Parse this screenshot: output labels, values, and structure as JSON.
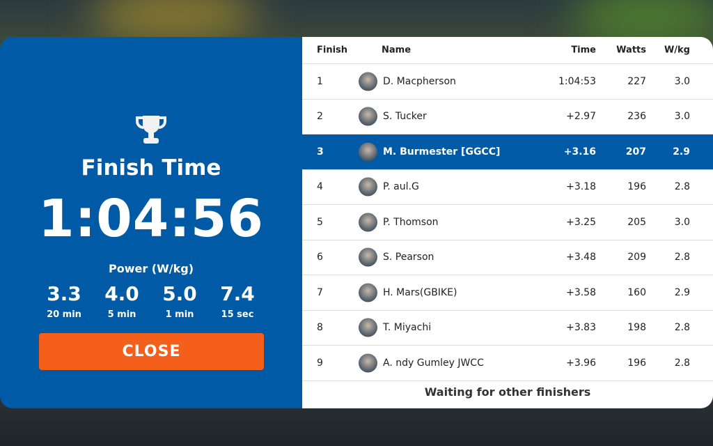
{
  "summary": {
    "title": "Finish Time",
    "time": "1:04:56",
    "power_label": "Power (W/kg)",
    "power": [
      {
        "value": "3.3",
        "label": "20 min"
      },
      {
        "value": "4.0",
        "label": "5 min"
      },
      {
        "value": "5.0",
        "label": "1 min"
      },
      {
        "value": "7.4",
        "label": "15 sec"
      }
    ],
    "close_label": "CLOSE",
    "icon": "trophy-icon"
  },
  "table": {
    "headers": {
      "finish": "Finish",
      "name": "Name",
      "time": "Time",
      "watts": "Watts",
      "wkg": "W/kg"
    },
    "rows": [
      {
        "pos": "1",
        "name": "D. Macpherson",
        "time": "1:04:53",
        "watts": "227",
        "wkg": "3.0"
      },
      {
        "pos": "2",
        "name": "S. Tucker",
        "time": "+2.97",
        "watts": "236",
        "wkg": "3.0"
      },
      {
        "pos": "3",
        "name": "M. Burmester [GGCC]",
        "time": "+3.16",
        "watts": "207",
        "wkg": "2.9",
        "highlighted": true
      },
      {
        "pos": "4",
        "name": "P. aul.G",
        "time": "+3.18",
        "watts": "196",
        "wkg": "2.8"
      },
      {
        "pos": "5",
        "name": "P. Thomson",
        "time": "+3.25",
        "watts": "205",
        "wkg": "3.0"
      },
      {
        "pos": "6",
        "name": "S. Pearson",
        "time": "+3.48",
        "watts": "209",
        "wkg": "2.8"
      },
      {
        "pos": "7",
        "name": "H. Mars(GBIKE)",
        "time": "+3.58",
        "watts": "160",
        "wkg": "2.9"
      },
      {
        "pos": "8",
        "name": "T. Miyachi",
        "time": "+3.83",
        "watts": "198",
        "wkg": "2.8"
      },
      {
        "pos": "9",
        "name": "A. ndy Gumley JWCC",
        "time": "+3.96",
        "watts": "196",
        "wkg": "2.8"
      }
    ],
    "footer": "Waiting for other finishers"
  },
  "colors": {
    "panel": "#005aa5",
    "close": "#f55f1c",
    "highlight": "#005aa5"
  }
}
